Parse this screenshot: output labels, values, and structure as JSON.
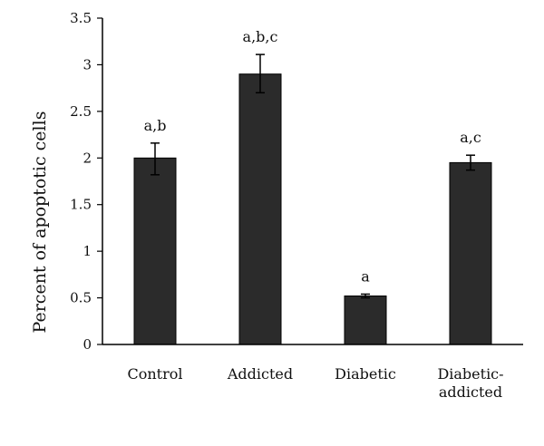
{
  "chart_data": {
    "type": "bar",
    "title": "",
    "xlabel": "",
    "ylabel": "Percent of apoptotic cells",
    "ylim": [
      0,
      3.5
    ],
    "yticks": [
      0,
      0.5,
      1,
      1.5,
      2,
      2.5,
      3,
      3.5
    ],
    "ytick_labels": [
      "0",
      "0.5",
      "1",
      "1.5",
      "2",
      "2.5",
      "3",
      "3.5"
    ],
    "grid": false,
    "legend": "none",
    "bar_color": "#2b2b2b",
    "categories": [
      {
        "lines": [
          "Control"
        ]
      },
      {
        "lines": [
          "Addicted"
        ]
      },
      {
        "lines": [
          "Diabetic"
        ]
      },
      {
        "lines": [
          "Diabetic-",
          "addicted"
        ]
      }
    ],
    "values": [
      2.0,
      2.9,
      0.52,
      1.95
    ],
    "error_low": [
      1.82,
      2.7,
      0.5,
      1.87
    ],
    "error_high": [
      2.16,
      3.11,
      0.54,
      2.03
    ],
    "annotations": [
      "a,b",
      "a,b,c",
      "a",
      "a,c"
    ]
  }
}
